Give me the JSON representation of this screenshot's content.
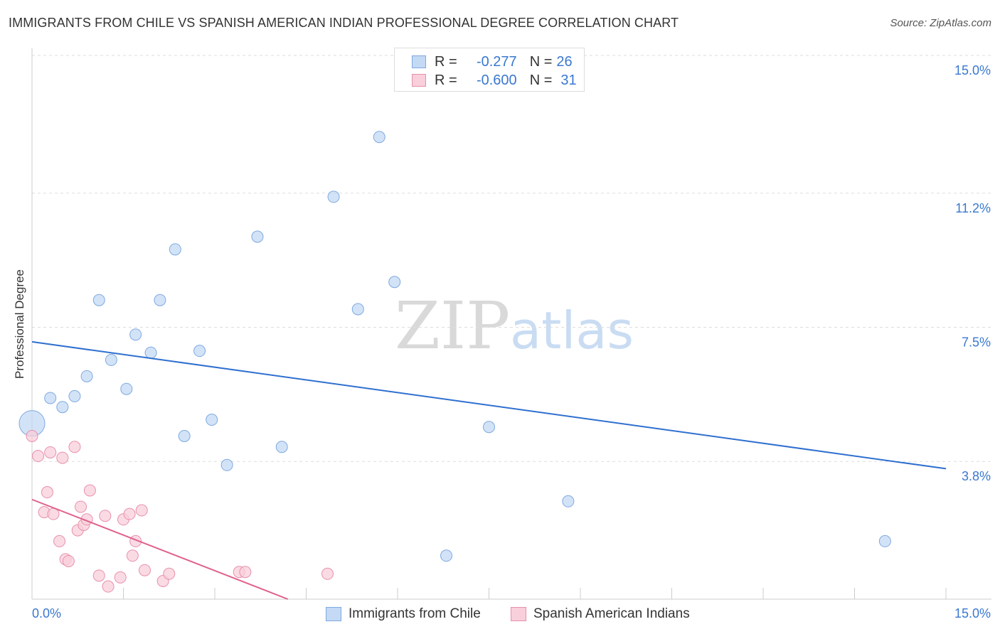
{
  "colors": {
    "blue_fill": "#c4d9f4",
    "blue_stroke": "#7ea9e0",
    "blue_line": "#2f6fcf",
    "pink_fill": "#f8cfdb",
    "pink_stroke": "#e890aa",
    "pink_line": "#e0608a",
    "tick_label": "#3a78d0",
    "grid": "#dedede",
    "axis": "#cccccc"
  },
  "chart_data": {
    "type": "scatter",
    "title": "IMMIGRANTS FROM CHILE VS SPANISH AMERICAN INDIAN PROFESSIONAL DEGREE CORRELATION CHART",
    "source": "Source: ZipAtlas.com",
    "ylabel": "Professional Degree",
    "xlabel": "",
    "xlim": [
      0,
      15
    ],
    "ylim": [
      0,
      15
    ],
    "x_tick_labels": {
      "min": "0.0%",
      "max": "15.0%"
    },
    "y_ticks": [
      {
        "value": 3.8,
        "label": "3.8%"
      },
      {
        "value": 7.5,
        "label": "7.5%"
      },
      {
        "value": 11.2,
        "label": "11.2%"
      },
      {
        "value": 15.0,
        "label": "15.0%"
      }
    ],
    "watermark": {
      "left": "ZIP",
      "right": "atlas"
    },
    "legend": {
      "rows": [
        {
          "r_label": "R =",
          "r_value": "-0.277",
          "n_label": "N =",
          "n_value": "26"
        },
        {
          "r_label": "R =",
          "r_value": "-0.600",
          "n_label": "N =",
          "n_value": "31"
        }
      ]
    },
    "series": [
      {
        "name": "Immigrants from Chile",
        "color": "blue",
        "trend": {
          "x": [
            0,
            15
          ],
          "y": [
            7.1,
            3.6
          ]
        },
        "points": [
          {
            "x": 0.0,
            "y": 4.85,
            "large": true
          },
          {
            "x": 0.3,
            "y": 5.55
          },
          {
            "x": 0.5,
            "y": 5.3
          },
          {
            "x": 0.7,
            "y": 5.6
          },
          {
            "x": 0.9,
            "y": 6.15
          },
          {
            "x": 1.1,
            "y": 8.25
          },
          {
            "x": 1.3,
            "y": 6.6
          },
          {
            "x": 1.55,
            "y": 5.8
          },
          {
            "x": 1.7,
            "y": 7.3
          },
          {
            "x": 1.95,
            "y": 6.8
          },
          {
            "x": 2.1,
            "y": 8.25
          },
          {
            "x": 2.35,
            "y": 9.65
          },
          {
            "x": 2.5,
            "y": 4.5
          },
          {
            "x": 2.75,
            "y": 6.85
          },
          {
            "x": 2.95,
            "y": 4.95
          },
          {
            "x": 3.2,
            "y": 3.7
          },
          {
            "x": 3.7,
            "y": 10.0
          },
          {
            "x": 4.1,
            "y": 4.2
          },
          {
            "x": 4.95,
            "y": 11.1
          },
          {
            "x": 5.35,
            "y": 8.0
          },
          {
            "x": 5.7,
            "y": 12.75
          },
          {
            "x": 5.95,
            "y": 8.75
          },
          {
            "x": 6.8,
            "y": 1.2
          },
          {
            "x": 7.5,
            "y": 4.75
          },
          {
            "x": 8.8,
            "y": 2.7
          },
          {
            "x": 14.0,
            "y": 1.6
          }
        ]
      },
      {
        "name": "Spanish American Indians",
        "color": "pink",
        "trend": {
          "x": [
            0,
            4.2
          ],
          "y": [
            2.75,
            0.0
          ]
        },
        "points": [
          {
            "x": 0.0,
            "y": 4.5
          },
          {
            "x": 0.1,
            "y": 3.95
          },
          {
            "x": 0.2,
            "y": 2.4
          },
          {
            "x": 0.25,
            "y": 2.95
          },
          {
            "x": 0.3,
            "y": 4.05
          },
          {
            "x": 0.35,
            "y": 2.35
          },
          {
            "x": 0.45,
            "y": 1.6
          },
          {
            "x": 0.5,
            "y": 3.9
          },
          {
            "x": 0.55,
            "y": 1.1
          },
          {
            "x": 0.6,
            "y": 1.05
          },
          {
            "x": 0.7,
            "y": 4.2
          },
          {
            "x": 0.75,
            "y": 1.9
          },
          {
            "x": 0.8,
            "y": 2.55
          },
          {
            "x": 0.85,
            "y": 2.05
          },
          {
            "x": 0.9,
            "y": 2.2
          },
          {
            "x": 0.95,
            "y": 3.0
          },
          {
            "x": 1.1,
            "y": 0.65
          },
          {
            "x": 1.2,
            "y": 2.3
          },
          {
            "x": 1.25,
            "y": 0.35
          },
          {
            "x": 1.45,
            "y": 0.6
          },
          {
            "x": 1.5,
            "y": 2.2
          },
          {
            "x": 1.6,
            "y": 2.35
          },
          {
            "x": 1.65,
            "y": 1.2
          },
          {
            "x": 1.7,
            "y": 1.6
          },
          {
            "x": 1.8,
            "y": 2.45
          },
          {
            "x": 1.85,
            "y": 0.8
          },
          {
            "x": 2.15,
            "y": 0.5
          },
          {
            "x": 2.25,
            "y": 0.7
          },
          {
            "x": 3.4,
            "y": 0.75
          },
          {
            "x": 3.5,
            "y": 0.75
          },
          {
            "x": 4.85,
            "y": 0.7
          }
        ]
      }
    ]
  }
}
